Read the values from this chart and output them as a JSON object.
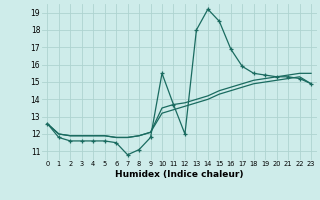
{
  "xlabel": "Humidex (Indice chaleur)",
  "bg_color": "#ceecea",
  "grid_color": "#aed4d0",
  "line_color": "#1a6b60",
  "xlim": [
    -0.5,
    23.5
  ],
  "ylim": [
    10.5,
    19.5
  ],
  "xticks": [
    0,
    1,
    2,
    3,
    4,
    5,
    6,
    7,
    8,
    9,
    10,
    11,
    12,
    13,
    14,
    15,
    16,
    17,
    18,
    19,
    20,
    21,
    22,
    23
  ],
  "yticks": [
    11,
    12,
    13,
    14,
    15,
    16,
    17,
    18,
    19
  ],
  "x": [
    0,
    1,
    2,
    3,
    4,
    5,
    6,
    7,
    8,
    9,
    10,
    11,
    12,
    13,
    14,
    15,
    16,
    17,
    18,
    19,
    20,
    21,
    22,
    23
  ],
  "y_jagged": [
    12.6,
    11.8,
    11.6,
    11.6,
    11.6,
    11.6,
    11.5,
    10.8,
    11.1,
    11.8,
    15.5,
    13.7,
    12.0,
    18.0,
    19.2,
    18.5,
    16.9,
    15.9,
    15.5,
    15.4,
    15.3,
    15.3,
    15.2,
    14.9
  ],
  "y_line1": [
    12.6,
    12.0,
    11.9,
    11.9,
    11.9,
    11.9,
    11.8,
    11.8,
    11.9,
    12.1,
    13.5,
    13.7,
    13.8,
    14.0,
    14.2,
    14.5,
    14.7,
    14.9,
    15.1,
    15.2,
    15.3,
    15.4,
    15.5,
    15.5
  ],
  "y_line2": [
    12.6,
    12.0,
    11.9,
    11.9,
    11.9,
    11.9,
    11.8,
    11.8,
    11.9,
    12.1,
    13.2,
    13.4,
    13.6,
    13.8,
    14.0,
    14.3,
    14.5,
    14.7,
    14.9,
    15.0,
    15.1,
    15.2,
    15.3,
    14.9
  ]
}
